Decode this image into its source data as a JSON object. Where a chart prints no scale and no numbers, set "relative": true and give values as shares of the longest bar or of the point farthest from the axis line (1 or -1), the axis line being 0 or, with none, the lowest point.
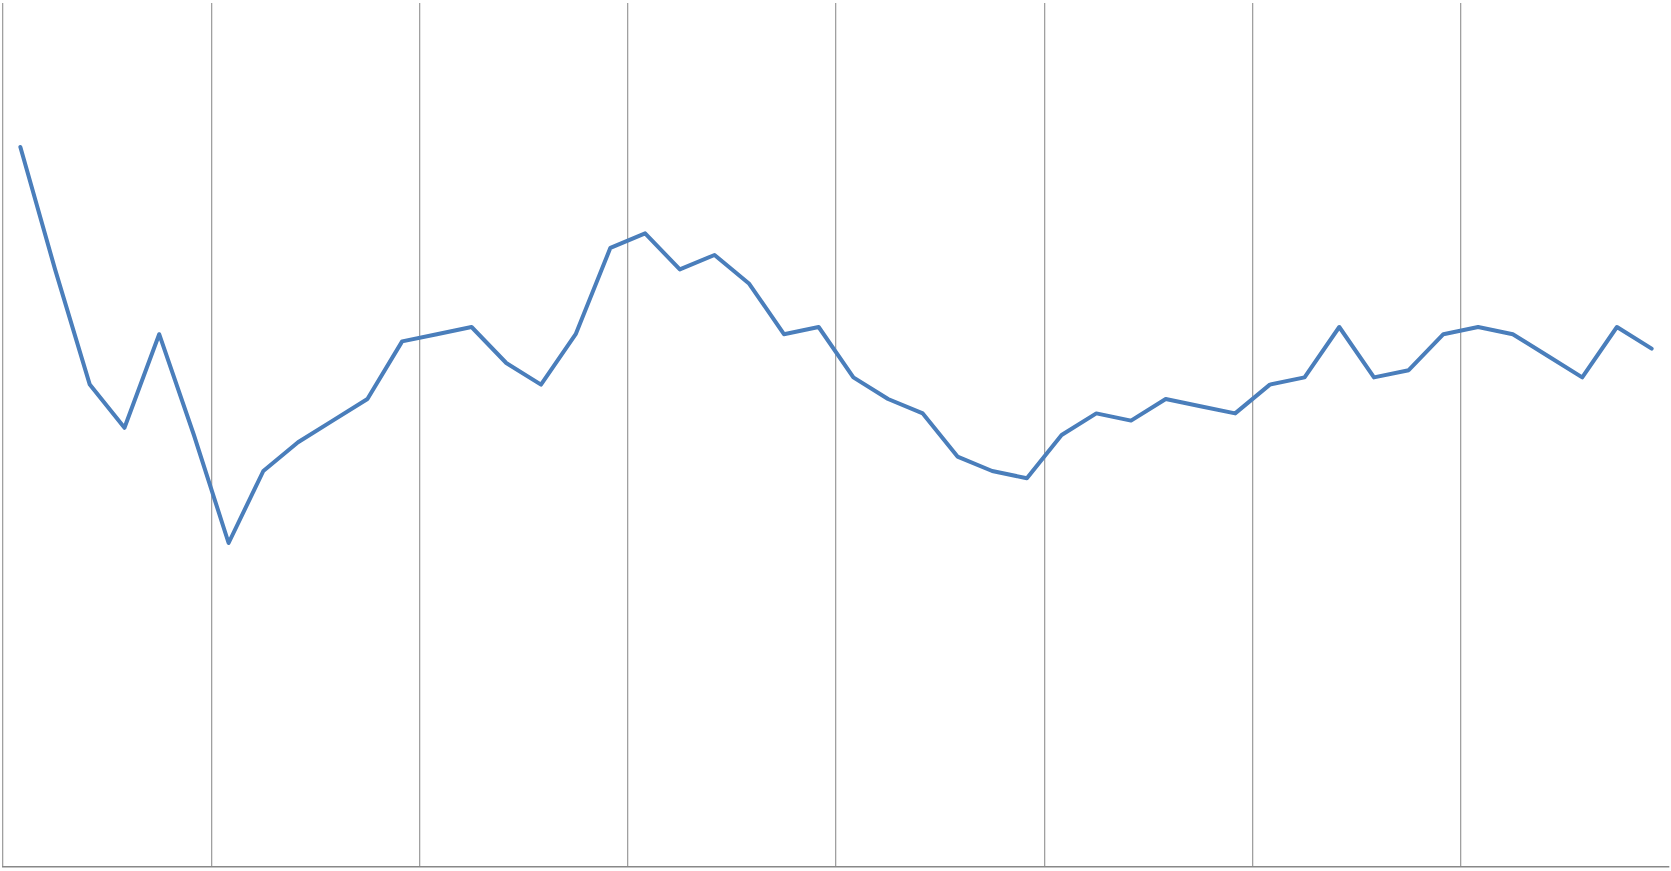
{
  "chart_data": {
    "type": "line",
    "relative": true,
    "color": "#4a7ebb",
    "grid": "x",
    "marker": "none",
    "line_style": "solid",
    "tick_labels": false,
    "legend": false,
    "categories": [
      null,
      null,
      null,
      null,
      null,
      null,
      null,
      null,
      null,
      null,
      null,
      null,
      null,
      null,
      null,
      null,
      null,
      null,
      null,
      null,
      null,
      null,
      null,
      null,
      null,
      null,
      null,
      null,
      null,
      null,
      null,
      null,
      null,
      null,
      null,
      null,
      null,
      null,
      null,
      null,
      null,
      null,
      null,
      null,
      null,
      null,
      null,
      null
    ],
    "values": [
      1.0,
      0.83,
      0.67,
      0.61,
      0.74,
      0.6,
      0.45,
      0.55,
      0.59,
      0.62,
      0.65,
      0.73,
      0.74,
      0.75,
      0.7,
      0.67,
      0.74,
      0.86,
      0.88,
      0.83,
      0.85,
      0.81,
      0.74,
      0.75,
      0.68,
      0.65,
      0.63,
      0.57,
      0.55,
      0.54,
      0.6,
      0.63,
      0.62,
      0.65,
      0.64,
      0.63,
      0.67,
      0.68,
      0.75,
      0.68,
      0.69,
      0.74,
      0.75,
      0.74,
      0.71,
      0.68,
      0.75,
      0.72
    ]
  }
}
